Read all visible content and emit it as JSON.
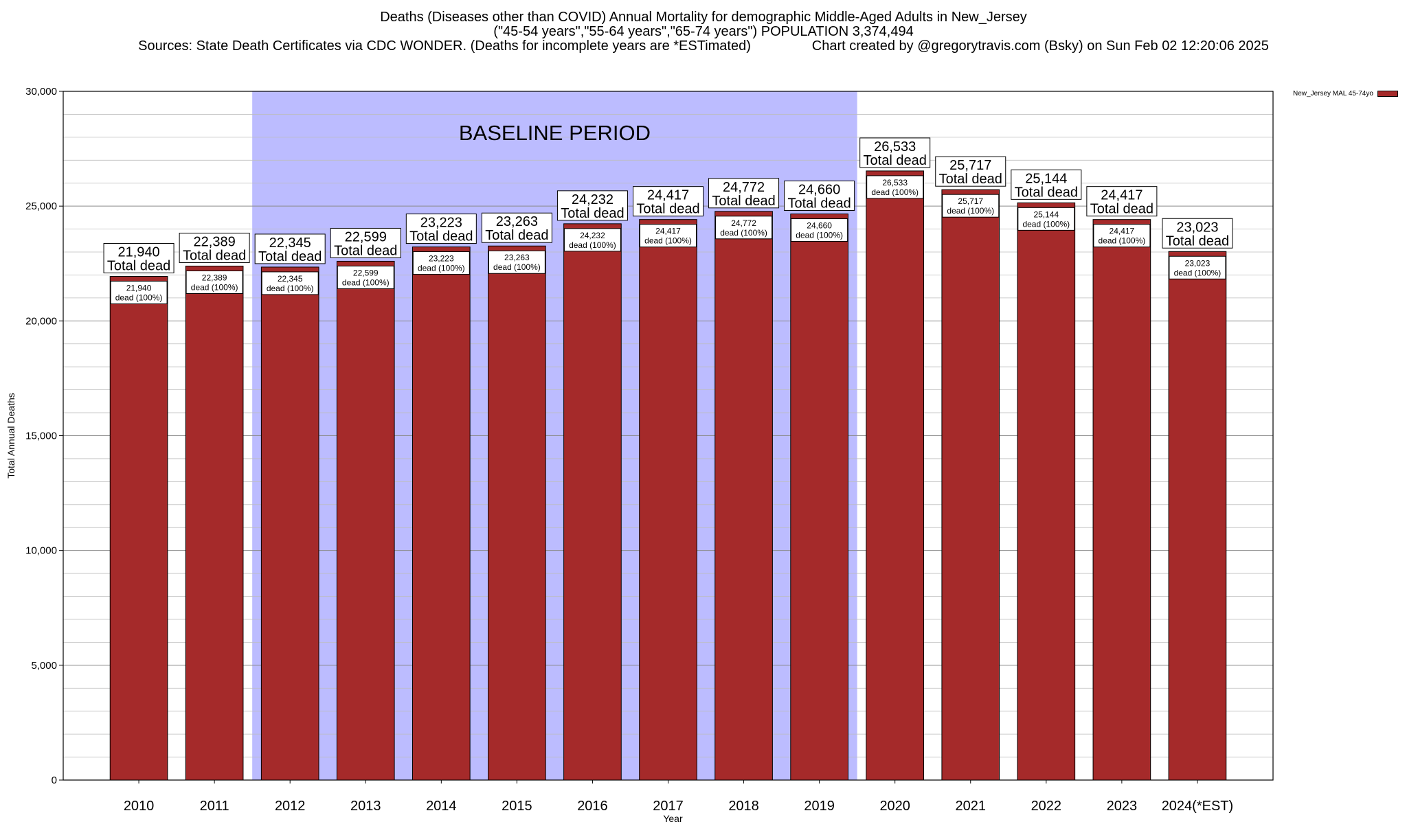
{
  "chart_data": {
    "type": "bar",
    "title_lines": [
      "Deaths (Diseases other than COVID) Annual Mortality for demographic Middle-Aged Adults in New_Jersey",
      "(\"45-54 years\",\"55-64 years\",\"65-74 years\") POPULATION 3,374,494",
      "Sources: State Death Certificates via CDC WONDER. (Deaths for incomplete years are *ESTimated)                Chart created by @gregorytravis.com (Bsky) on Sun Feb 02 12:20:06 2025"
    ],
    "xlabel": "Year",
    "ylabel": "Total Annual Deaths",
    "ylim": [
      0,
      30000
    ],
    "yticks": [
      0,
      5000,
      10000,
      15000,
      20000,
      25000,
      30000
    ],
    "ytick_labels": [
      "0",
      "5,000",
      "10,000",
      "15,000",
      "20,000",
      "25,000",
      "30,000"
    ],
    "categories": [
      "2010",
      "2011",
      "2012",
      "2013",
      "2014",
      "2015",
      "2016",
      "2017",
      "2018",
      "2019",
      "2020",
      "2021",
      "2022",
      "2023",
      "2024(*EST)"
    ],
    "series": [
      {
        "name": "New_Jersey MAL 45-74yo",
        "color": "#a52a2a",
        "values": [
          21940,
          22389,
          22345,
          22599,
          23223,
          23263,
          24232,
          24417,
          24772,
          24660,
          26533,
          25717,
          25144,
          24417,
          23023
        ]
      }
    ],
    "total_labels": [
      "21,940",
      "22,389",
      "22,345",
      "22,599",
      "23,223",
      "23,263",
      "24,232",
      "24,417",
      "24,772",
      "24,660",
      "26,533",
      "25,717",
      "25,144",
      "24,417",
      "23,023"
    ],
    "total_suffix": "Total dead",
    "inner_suffix": "dead (100%)",
    "baseline": {
      "label": "BASELINE PERIOD",
      "from": "2012",
      "to": "2019",
      "color": "#bcbcff"
    },
    "grid": true,
    "legend_position": "top-right"
  }
}
